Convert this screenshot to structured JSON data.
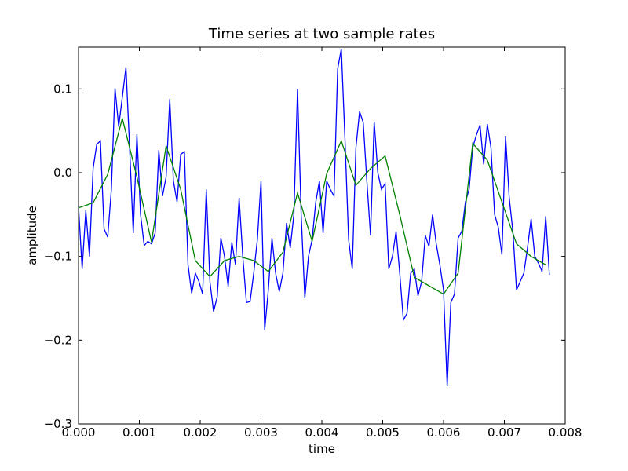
{
  "chart_data": {
    "type": "line",
    "title": "Time series at two sample rates",
    "xlabel": "time",
    "ylabel": "amplitude",
    "xlim": [
      0,
      0.008
    ],
    "ylim": [
      -0.3,
      0.15
    ],
    "xticks": [
      {
        "value": 0,
        "label": "0.000"
      },
      {
        "value": 0.001,
        "label": "0.001"
      },
      {
        "value": 0.002,
        "label": "0.002"
      },
      {
        "value": 0.003,
        "label": "0.003"
      },
      {
        "value": 0.004,
        "label": "0.004"
      },
      {
        "value": 0.005,
        "label": "0.005"
      },
      {
        "value": 0.006,
        "label": "0.006"
      },
      {
        "value": 0.007,
        "label": "0.007"
      },
      {
        "value": 0.008,
        "label": "0.008"
      }
    ],
    "yticks": [
      {
        "value": -0.3,
        "label": "−0.3"
      },
      {
        "value": -0.2,
        "label": "−0.2"
      },
      {
        "value": -0.1,
        "label": "−0.1"
      },
      {
        "value": 0,
        "label": "0.0"
      },
      0.1
    ],
    "series": [
      {
        "color": "#0000ff",
        "x": [
          0,
          6e-05,
          0.00012,
          0.00018,
          0.00024,
          0.0003,
          0.00036,
          0.00042,
          0.00048,
          0.00054,
          0.0006,
          0.00066,
          0.00072,
          0.00078,
          0.00084,
          0.0009,
          0.00096,
          0.00102,
          0.00108,
          0.00114,
          0.0012,
          0.00126,
          0.00132,
          0.00138,
          0.00144,
          0.0015,
          0.00156,
          0.00162,
          0.00168,
          0.00174,
          0.0018,
          0.00186,
          0.00192,
          0.00198,
          0.00204,
          0.0021,
          0.00216,
          0.00222,
          0.00228,
          0.00234,
          0.0024,
          0.00246,
          0.00252,
          0.00258,
          0.00264,
          0.0027,
          0.00276,
          0.00282,
          0.00288,
          0.00294,
          0.003,
          0.00306,
          0.00312,
          0.00318,
          0.00324,
          0.0033,
          0.00336,
          0.00342,
          0.00348,
          0.00354,
          0.0036,
          0.00366,
          0.00372,
          0.00378,
          0.00384,
          0.0039,
          0.00396,
          0.00402,
          0.00408,
          0.00414,
          0.0042,
          0.00426,
          0.00432,
          0.00438,
          0.00444,
          0.0045,
          0.00456,
          0.00462,
          0.00468,
          0.00474,
          0.0048,
          0.00486,
          0.00492,
          0.00498,
          0.00504,
          0.0051,
          0.00516,
          0.00522,
          0.00528,
          0.00534,
          0.0054,
          0.00546,
          0.00552,
          0.00558,
          0.00564,
          0.0057,
          0.00576,
          0.00582,
          0.00588,
          0.00594,
          0.006,
          0.00606,
          0.00612,
          0.00618,
          0.00624,
          0.0063,
          0.00636,
          0.00642,
          0.00648,
          0.00654,
          0.0066,
          0.00666,
          0.00672,
          0.00678,
          0.00684,
          0.0069,
          0.00696,
          0.00702,
          0.00708,
          0.00714,
          0.0072,
          0.00726,
          0.00732,
          0.00738,
          0.00744,
          0.0075,
          0.00756,
          0.00762,
          0.00768,
          0.00774
        ],
        "values": [
          -0.04,
          -0.115,
          -0.045,
          -0.1,
          0.005,
          0.034,
          0.038,
          -0.067,
          -0.077,
          -0.02,
          0.101,
          0.055,
          0.09,
          0.126,
          0.03,
          -0.072,
          0.046,
          -0.05,
          -0.087,
          -0.082,
          -0.085,
          -0.072,
          0.027,
          -0.028,
          -0.005,
          0.088,
          -0.01,
          -0.035,
          0.022,
          0.025,
          -0.11,
          -0.144,
          -0.12,
          -0.13,
          -0.145,
          -0.02,
          -0.13,
          -0.166,
          -0.148,
          -0.078,
          -0.1,
          -0.136,
          -0.083,
          -0.11,
          -0.03,
          -0.1,
          -0.155,
          -0.154,
          -0.12,
          -0.08,
          -0.01,
          -0.188,
          -0.14,
          -0.078,
          -0.12,
          -0.142,
          -0.12,
          -0.06,
          -0.09,
          -0.05,
          0.1,
          -0.05,
          -0.15,
          -0.1,
          -0.08,
          -0.035,
          -0.01,
          -0.072,
          -0.01,
          -0.02,
          -0.028,
          0.124,
          0.148,
          0.04,
          -0.08,
          -0.115,
          0.03,
          0.073,
          0.06,
          -0.01,
          -0.075,
          0.061,
          0,
          -0.02,
          -0.013,
          -0.115,
          -0.1,
          -0.07,
          -0.12,
          -0.176,
          -0.168,
          -0.12,
          -0.115,
          -0.147,
          -0.13,
          -0.075,
          -0.088,
          -0.05,
          -0.085,
          -0.11,
          -0.14,
          -0.255,
          -0.155,
          -0.145,
          -0.078,
          -0.07,
          -0.035,
          -0.02,
          0.03,
          0.045,
          0.057,
          0.01,
          0.058,
          0.03,
          -0.05,
          -0.065,
          -0.098,
          0.044,
          -0.03,
          -0.07,
          -0.14,
          -0.13,
          -0.12,
          -0.09,
          -0.055,
          -0.1,
          -0.108,
          -0.118,
          -0.052,
          -0.122
        ]
      },
      {
        "color": "#008000",
        "x": [
          0,
          0.00024,
          0.00048,
          0.00072,
          0.00096,
          0.0012,
          0.00144,
          0.00168,
          0.00192,
          0.00216,
          0.0024,
          0.00264,
          0.00288,
          0.00312,
          0.00336,
          0.0036,
          0.00384,
          0.00408,
          0.00432,
          0.00456,
          0.0048,
          0.00504,
          0.00528,
          0.00552,
          0.00576,
          0.006,
          0.00624,
          0.00648,
          0.00672,
          0.00696,
          0.0072,
          0.00744,
          0.00768
        ],
        "values": [
          -0.042,
          -0.036,
          -0.002,
          0.065,
          -0.005,
          -0.083,
          0.032,
          -0.02,
          -0.105,
          -0.124,
          -0.105,
          -0.1,
          -0.105,
          -0.118,
          -0.095,
          -0.024,
          -0.082,
          -0.001,
          0.038,
          -0.015,
          0.005,
          0.02,
          -0.05,
          -0.125,
          -0.135,
          -0.145,
          -0.12,
          0.035,
          0.015,
          -0.035,
          -0.085,
          -0.1,
          -0.11
        ]
      }
    ]
  }
}
